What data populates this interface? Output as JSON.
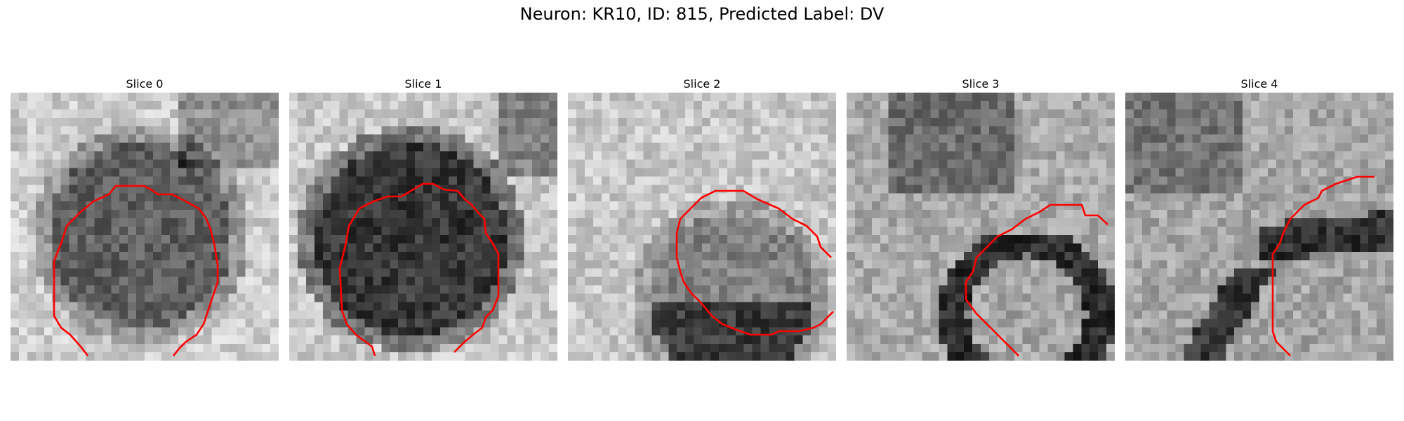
{
  "title": "Neuron: KR10, ID: 815, Predicted Label: DV",
  "contour_color": "#ff0000",
  "slices": [
    {
      "label": "Slice 0",
      "content": "dark round cell body centered in frame, light background with dark region near top-right"
    },
    {
      "label": "Slice 1",
      "content": "very dark round cell body filling left-center of frame, light surroundings"
    },
    {
      "label": "Slice 2",
      "content": "medium-gray cell body in lower-center, darker bottom portion, light speckled background"
    },
    {
      "label": "Slice 3",
      "content": "dark ring-shaped membrane at lower-right, gray mottled background"
    },
    {
      "label": "Slice 4",
      "content": "dark diagonal band crossing right side, mottled gray texture"
    }
  ]
}
